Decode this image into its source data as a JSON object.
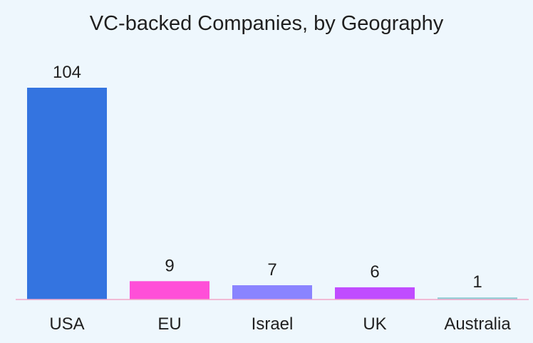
{
  "chart_data": {
    "type": "bar",
    "title": "VC-backed Companies, by Geography",
    "xlabel": "",
    "ylabel": "",
    "ylim": [
      0,
      104
    ],
    "grid": false,
    "categories": [
      "USA",
      "EU",
      "Israel",
      "UK",
      "Australia"
    ],
    "values": [
      104,
      9,
      7,
      6,
      1
    ],
    "colors": [
      "#3474e0",
      "#ff4fd8",
      "#8a84ff",
      "#c04cff",
      "#93cfd6"
    ],
    "baseline_color": "#f2a6c8"
  }
}
